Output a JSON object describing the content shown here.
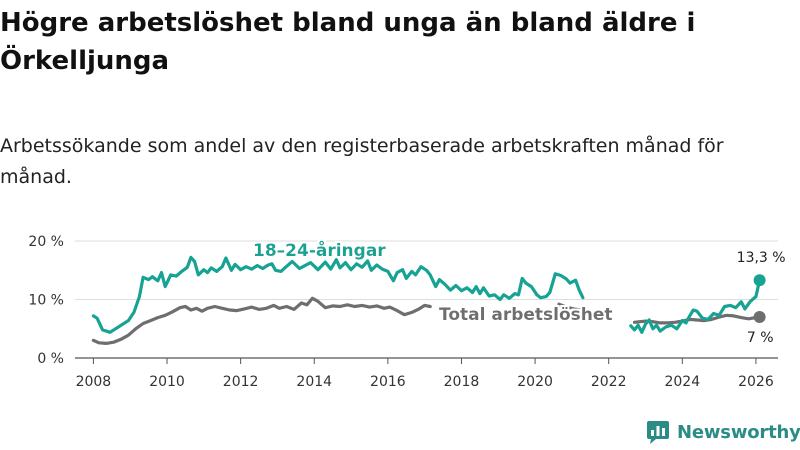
{
  "header": {
    "title": "Högre arbetslöshet bland unga än bland äldre i Örkelljunga",
    "subtitle": "Arbetssökande som andel av den registerbaserade arbetskraften månad för månad."
  },
  "brand": {
    "name": "Newsworthy"
  },
  "colors": {
    "youth": "#16a394",
    "total": "#6e6e70",
    "grid": "#dddddd",
    "axis": "#555555"
  },
  "chart_data": {
    "type": "line",
    "title": "Högre arbetslöshet bland unga än bland äldre i Örkelljunga",
    "subtitle": "Arbetssökande som andel av den registerbaserade arbetskraften månad för månad.",
    "xlabel": "",
    "ylabel": "",
    "xlim": [
      2007.5,
      2026.6
    ],
    "ylim": [
      0,
      20
    ],
    "y_ticks": [
      0,
      10,
      20
    ],
    "y_tick_labels": [
      "0 %",
      "10 %",
      "20 %"
    ],
    "x_ticks": [
      2008,
      2010,
      2012,
      2014,
      2016,
      2018,
      2020,
      2022,
      2024,
      2026
    ],
    "x_tick_labels": [
      "2008",
      "2010",
      "2012",
      "2014",
      "2016",
      "2018",
      "2020",
      "2022",
      "2024",
      "2026"
    ],
    "grid": "horizontal",
    "series": [
      {
        "name": "18–24-åringar",
        "label": "18–24-åringar",
        "color": "#16a394",
        "end_label": "13,3 %",
        "end_value": 13.3,
        "points": [
          [
            2008.0,
            7.2
          ],
          [
            2008.1,
            6.8
          ],
          [
            2008.25,
            4.8
          ],
          [
            2008.45,
            4.4
          ],
          [
            2008.6,
            5.0
          ],
          [
            2008.8,
            5.8
          ],
          [
            2008.95,
            6.4
          ],
          [
            2009.1,
            7.8
          ],
          [
            2009.25,
            10.5
          ],
          [
            2009.35,
            13.8
          ],
          [
            2009.5,
            13.4
          ],
          [
            2009.6,
            13.9
          ],
          [
            2009.75,
            13.2
          ],
          [
            2009.85,
            14.6
          ],
          [
            2009.95,
            12.2
          ],
          [
            2010.1,
            14.2
          ],
          [
            2010.25,
            14.0
          ],
          [
            2010.4,
            14.8
          ],
          [
            2010.55,
            15.5
          ],
          [
            2010.65,
            17.2
          ],
          [
            2010.75,
            16.5
          ],
          [
            2010.85,
            14.2
          ],
          [
            2011.0,
            15.1
          ],
          [
            2011.1,
            14.6
          ],
          [
            2011.2,
            15.4
          ],
          [
            2011.35,
            14.8
          ],
          [
            2011.5,
            15.6
          ],
          [
            2011.6,
            17.1
          ],
          [
            2011.75,
            15.0
          ],
          [
            2011.85,
            16.0
          ],
          [
            2012.0,
            15.1
          ],
          [
            2012.15,
            15.6
          ],
          [
            2012.3,
            15.2
          ],
          [
            2012.45,
            15.8
          ],
          [
            2012.6,
            15.3
          ],
          [
            2012.75,
            15.9
          ],
          [
            2012.85,
            16.1
          ],
          [
            2012.95,
            15.0
          ],
          [
            2013.1,
            14.8
          ],
          [
            2013.2,
            15.4
          ],
          [
            2013.4,
            16.5
          ],
          [
            2013.6,
            15.3
          ],
          [
            2013.75,
            15.8
          ],
          [
            2013.9,
            16.3
          ],
          [
            2014.1,
            15.1
          ],
          [
            2014.3,
            16.4
          ],
          [
            2014.45,
            15.2
          ],
          [
            2014.6,
            16.8
          ],
          [
            2014.7,
            15.4
          ],
          [
            2014.85,
            16.3
          ],
          [
            2015.0,
            15.1
          ],
          [
            2015.15,
            16.1
          ],
          [
            2015.3,
            15.5
          ],
          [
            2015.45,
            16.6
          ],
          [
            2015.55,
            15.0
          ],
          [
            2015.7,
            15.9
          ],
          [
            2015.85,
            15.2
          ],
          [
            2016.0,
            14.8
          ],
          [
            2016.15,
            13.2
          ],
          [
            2016.25,
            14.6
          ],
          [
            2016.4,
            15.1
          ],
          [
            2016.5,
            13.6
          ],
          [
            2016.65,
            14.8
          ],
          [
            2016.75,
            14.2
          ],
          [
            2016.9,
            15.6
          ],
          [
            2017.05,
            15.0
          ],
          [
            2017.15,
            14.2
          ],
          [
            2017.3,
            12.2
          ],
          [
            2017.4,
            13.4
          ],
          [
            2017.55,
            12.6
          ],
          [
            2017.7,
            11.6
          ],
          [
            2017.85,
            12.4
          ],
          [
            2018.0,
            11.5
          ],
          [
            2018.15,
            12.0
          ],
          [
            2018.3,
            11.2
          ],
          [
            2018.4,
            12.2
          ],
          [
            2018.5,
            11.0
          ],
          [
            2018.6,
            12.0
          ],
          [
            2018.75,
            10.6
          ],
          [
            2018.9,
            10.8
          ],
          [
            2019.05,
            10.0
          ],
          [
            2019.15,
            10.8
          ],
          [
            2019.3,
            10.2
          ],
          [
            2019.45,
            11.0
          ],
          [
            2019.55,
            10.8
          ],
          [
            2019.65,
            13.6
          ],
          [
            2019.75,
            12.8
          ],
          [
            2019.9,
            12.2
          ],
          [
            2020.05,
            10.8
          ],
          [
            2020.15,
            10.3
          ],
          [
            2020.3,
            10.5
          ],
          [
            2020.4,
            11.2
          ],
          [
            2020.55,
            14.4
          ],
          [
            2020.7,
            14.1
          ],
          [
            2020.85,
            13.5
          ],
          [
            2020.95,
            12.8
          ],
          [
            2021.1,
            13.3
          ],
          [
            2021.2,
            11.6
          ],
          [
            2021.3,
            10.3
          ]
        ],
        "points_after_gap": [
          [
            2022.6,
            5.5
          ],
          [
            2022.7,
            4.8
          ],
          [
            2022.8,
            5.6
          ],
          [
            2022.9,
            4.4
          ],
          [
            2023.0,
            5.8
          ],
          [
            2023.1,
            6.5
          ],
          [
            2023.2,
            5.0
          ],
          [
            2023.3,
            5.6
          ],
          [
            2023.4,
            4.6
          ],
          [
            2023.55,
            5.3
          ],
          [
            2023.7,
            5.6
          ],
          [
            2023.85,
            5.0
          ],
          [
            2024.0,
            6.4
          ],
          [
            2024.1,
            6.0
          ],
          [
            2024.2,
            7.2
          ],
          [
            2024.3,
            8.2
          ],
          [
            2024.4,
            8.0
          ],
          [
            2024.55,
            6.8
          ],
          [
            2024.7,
            6.6
          ],
          [
            2024.85,
            7.6
          ],
          [
            2025.0,
            7.3
          ],
          [
            2025.15,
            8.8
          ],
          [
            2025.3,
            9.0
          ],
          [
            2025.45,
            8.6
          ],
          [
            2025.6,
            9.6
          ],
          [
            2025.7,
            8.4
          ],
          [
            2025.85,
            9.7
          ],
          [
            2026.0,
            10.5
          ],
          [
            2026.1,
            13.3
          ]
        ]
      },
      {
        "name": "Total arbetslöshet",
        "label": "Total arbetslöshet",
        "color": "#6e6e70",
        "end_label": "7 %",
        "end_value": 7,
        "points": [
          [
            2008.0,
            3.0
          ],
          [
            2008.15,
            2.6
          ],
          [
            2008.35,
            2.5
          ],
          [
            2008.55,
            2.7
          ],
          [
            2008.75,
            3.2
          ],
          [
            2008.95,
            3.9
          ],
          [
            2009.15,
            5.0
          ],
          [
            2009.35,
            5.9
          ],
          [
            2009.55,
            6.4
          ],
          [
            2009.75,
            6.9
          ],
          [
            2009.95,
            7.3
          ],
          [
            2010.15,
            7.9
          ],
          [
            2010.35,
            8.6
          ],
          [
            2010.5,
            8.8
          ],
          [
            2010.65,
            8.2
          ],
          [
            2010.8,
            8.5
          ],
          [
            2010.95,
            8.0
          ],
          [
            2011.1,
            8.5
          ],
          [
            2011.3,
            8.8
          ],
          [
            2011.5,
            8.5
          ],
          [
            2011.7,
            8.2
          ],
          [
            2011.9,
            8.1
          ],
          [
            2012.1,
            8.4
          ],
          [
            2012.3,
            8.7
          ],
          [
            2012.5,
            8.3
          ],
          [
            2012.7,
            8.5
          ],
          [
            2012.9,
            9.0
          ],
          [
            2013.05,
            8.5
          ],
          [
            2013.25,
            8.8
          ],
          [
            2013.45,
            8.3
          ],
          [
            2013.65,
            9.4
          ],
          [
            2013.8,
            9.1
          ],
          [
            2013.95,
            10.2
          ],
          [
            2014.1,
            9.7
          ],
          [
            2014.3,
            8.6
          ],
          [
            2014.5,
            8.9
          ],
          [
            2014.7,
            8.8
          ],
          [
            2014.9,
            9.1
          ],
          [
            2015.1,
            8.8
          ],
          [
            2015.3,
            9.0
          ],
          [
            2015.5,
            8.7
          ],
          [
            2015.7,
            8.9
          ],
          [
            2015.9,
            8.5
          ],
          [
            2016.05,
            8.7
          ],
          [
            2016.25,
            8.1
          ],
          [
            2016.45,
            7.4
          ],
          [
            2016.65,
            7.8
          ],
          [
            2016.85,
            8.4
          ],
          [
            2017.0,
            9.0
          ],
          [
            2017.15,
            8.8
          ]
        ],
        "points_after_gap": [
          [
            2020.65,
            9.2
          ],
          [
            2020.85,
            8.7
          ],
          [
            2021.05,
            8.4
          ],
          [
            2021.25,
            8.2
          ]
        ],
        "points_late": [
          [
            2022.7,
            6.1
          ],
          [
            2022.85,
            6.2
          ],
          [
            2023.0,
            6.3
          ],
          [
            2023.2,
            6.2
          ],
          [
            2023.4,
            6.0
          ],
          [
            2023.6,
            6.0
          ],
          [
            2023.8,
            6.1
          ],
          [
            2024.0,
            6.3
          ],
          [
            2024.2,
            6.6
          ],
          [
            2024.4,
            6.5
          ],
          [
            2024.6,
            6.4
          ],
          [
            2024.8,
            6.6
          ],
          [
            2025.0,
            7.0
          ],
          [
            2025.2,
            7.3
          ],
          [
            2025.4,
            7.2
          ],
          [
            2025.6,
            6.9
          ],
          [
            2025.8,
            6.7
          ],
          [
            2026.0,
            6.9
          ],
          [
            2026.1,
            7.0
          ]
        ]
      }
    ]
  }
}
